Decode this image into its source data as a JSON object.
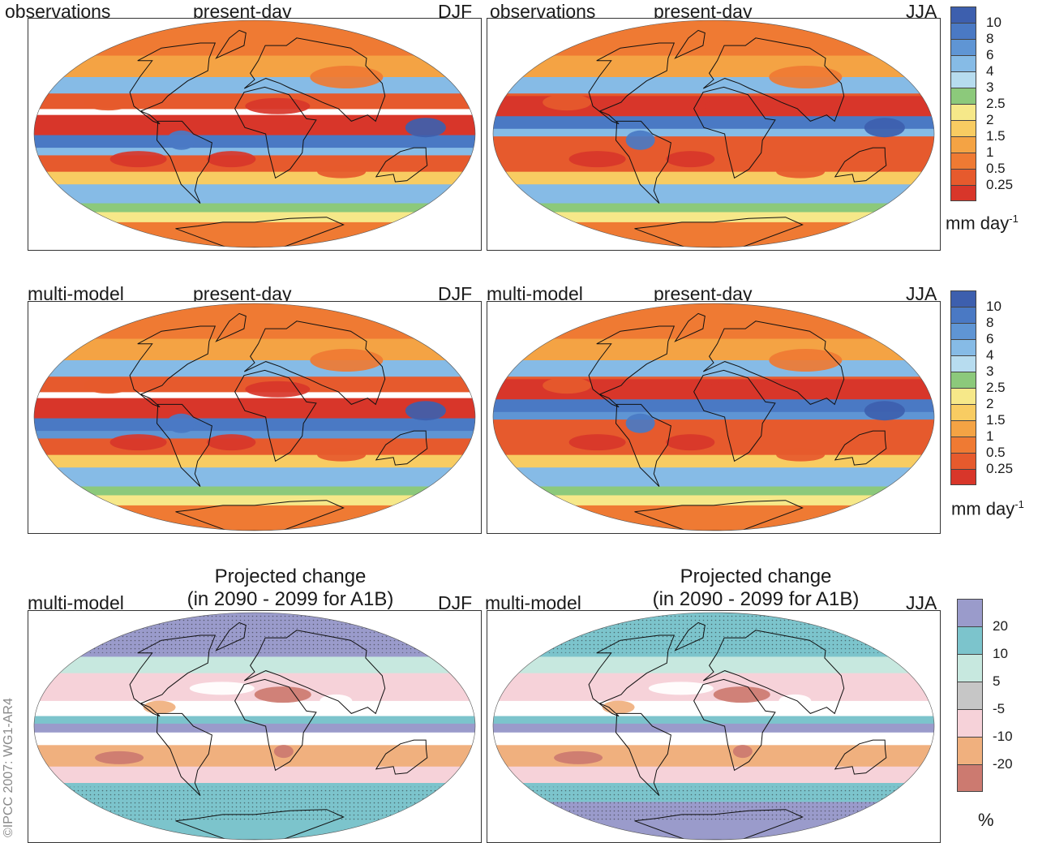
{
  "rows": [
    {
      "left": {
        "source": "observations",
        "period": "present-day",
        "season": "DJF"
      },
      "right": {
        "source": "observations",
        "period": "present-day",
        "season": "JJA"
      }
    },
    {
      "left": {
        "source": "multi-model",
        "period": "present-day",
        "season": "DJF"
      },
      "right": {
        "source": "multi-model",
        "period": "present-day",
        "season": "JJA"
      }
    },
    {
      "left": {
        "source": "multi-model",
        "title1": "Projected change",
        "title2": "(in 2090 - 2099 for A1B)",
        "season": "DJF"
      },
      "right": {
        "source": "multi-model",
        "title1": "Projected change",
        "title2": "(in 2090 - 2099 for A1B)",
        "season": "JJA"
      }
    }
  ],
  "precip_colorbar": {
    "ticks": [
      "10",
      "8",
      "6",
      "4",
      "3",
      "2.5",
      "2",
      "1.5",
      "1",
      "0.5",
      "0.25"
    ],
    "colors": [
      "#3d5fae",
      "#4a79c4",
      "#5f95d4",
      "#86bbe6",
      "#b7dcef",
      "#8cc97b",
      "#f6e889",
      "#f8cc62",
      "#f4a344",
      "#ef7a33",
      "#e65a2d",
      "#d8362a"
    ],
    "units": "mm day",
    "units_exp": "-1"
  },
  "change_colorbar": {
    "ticks": [
      "20",
      "10",
      "5",
      "-5",
      "-10",
      "-20"
    ],
    "colors": [
      "#9a9bcb",
      "#7cc4cc",
      "#c7e8df",
      "#c6c6c6",
      "#f6d2d9",
      "#f0b07e",
      "#cc7a70"
    ],
    "units": "%"
  },
  "copyright": "©IPCC 2007: WG1-AR4"
}
